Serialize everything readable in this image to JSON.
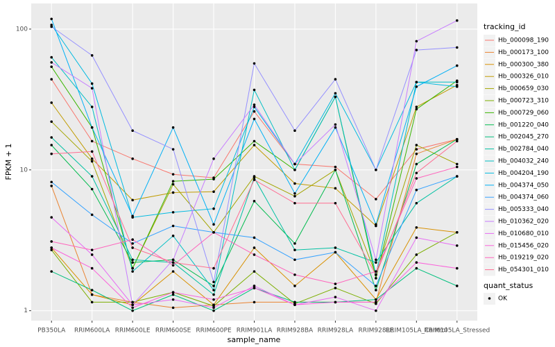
{
  "chart_data": {
    "type": "line",
    "log_y": true,
    "grid": true,
    "x_label": "sample_name",
    "y_label": "FPKM + 1",
    "legend_title": "tracking_id",
    "status_legend_title": "quant_status",
    "status_labels": [
      "OK"
    ],
    "categories": [
      "PB350LA",
      "RRIM600LA",
      "RRIM600LE",
      "RRIM600SE",
      "RRIM600PE",
      "RRIM901LA",
      "RRIM928BA",
      "RRIM928LA",
      "RRIM928LE",
      "RRIM105LA_Control",
      "RRIM105LA_Stressed"
    ],
    "ylim": [
      0.85,
      152
    ],
    "yticks": [
      1,
      10,
      100
    ],
    "series": [
      {
        "name": "Hb_000098_190",
        "color": "#F8766D",
        "values": [
          44,
          16,
          12,
          9.3,
          8.8,
          26,
          11,
          10.5,
          6.2,
          14,
          16.5
        ]
      },
      {
        "name": "Hb_000173_100",
        "color": "#EA8331",
        "values": [
          7.7,
          1.3,
          1.15,
          1.05,
          1.1,
          1.15,
          1.15,
          1.15,
          1.15,
          13,
          16.5
        ]
      },
      {
        "name": "Hb_000300_380",
        "color": "#D89000",
        "values": [
          2.8,
          1.3,
          1.1,
          1.9,
          1.1,
          2.8,
          1.5,
          2.6,
          1.2,
          3.9,
          3.6
        ]
      },
      {
        "name": "Hb_000326_010",
        "color": "#C09B00",
        "values": [
          30,
          12,
          6.1,
          6.9,
          7.0,
          15,
          8.0,
          7.4,
          4.0,
          28,
          40
        ]
      },
      {
        "name": "Hb_000659_030",
        "color": "#A3A500",
        "values": [
          22,
          11.5,
          2.0,
          7.9,
          3.6,
          9,
          6.5,
          10,
          1.8,
          15,
          11
        ]
      },
      {
        "name": "Hb_000723_310",
        "color": "#7CAE00",
        "values": [
          2.7,
          1.15,
          1.15,
          1.35,
          1.08,
          1.9,
          1.12,
          1.45,
          1.12,
          2.5,
          3.6
        ]
      },
      {
        "name": "Hb_000729_060",
        "color": "#39B600",
        "values": [
          54,
          20,
          2.0,
          8.3,
          8.6,
          16,
          10,
          33,
          1.7,
          27,
          43
        ]
      },
      {
        "name": "Hb_001220_040",
        "color": "#00BB4E",
        "values": [
          15,
          7.3,
          2.2,
          2.3,
          1.5,
          6,
          3.0,
          10,
          1.4,
          11,
          16.5
        ]
      },
      {
        "name": "Hb_002045_270",
        "color": "#00BF7D",
        "values": [
          1.9,
          1.4,
          1.0,
          1.3,
          1.0,
          1.45,
          1.15,
          1.15,
          1.2,
          2.0,
          1.5
        ]
      },
      {
        "name": "Hb_002784_040",
        "color": "#00C1A3",
        "values": [
          17,
          9,
          2.3,
          2.2,
          1.3,
          8.8,
          2.7,
          2.8,
          2.2,
          5.8,
          9
        ]
      },
      {
        "name": "Hb_004032_240",
        "color": "#00BFC4",
        "values": [
          63,
          28,
          1.9,
          3.4,
          1.4,
          37,
          10,
          33,
          1.8,
          42,
          42
        ]
      },
      {
        "name": "Hb_004204_190",
        "color": "#00BAE0",
        "values": [
          107,
          41,
          4.6,
          5.0,
          5.3,
          28,
          11,
          35,
          10,
          42,
          39
        ]
      },
      {
        "name": "Hb_004374_050",
        "color": "#00B0F6",
        "values": [
          118,
          20,
          4.7,
          20,
          4.1,
          23,
          6.8,
          20,
          4.1,
          39,
          55
        ]
      },
      {
        "name": "Hb_004374_060",
        "color": "#35A2FF",
        "values": [
          8.2,
          4.8,
          3.0,
          4.0,
          3.6,
          3.3,
          2.3,
          2.6,
          1.5,
          7.2,
          9
        ]
      },
      {
        "name": "Hb_005333_040",
        "color": "#9590FF",
        "values": [
          104,
          65,
          19,
          14,
          1.6,
          57,
          19,
          44,
          10,
          71,
          74
        ]
      },
      {
        "name": "Hb_010362_020",
        "color": "#C77CFF",
        "values": [
          58,
          38,
          1.1,
          2.3,
          12,
          29,
          11,
          21,
          2.3,
          82,
          115
        ]
      },
      {
        "name": "Hb_010680_010",
        "color": "#E76BF3",
        "values": [
          4.6,
          2.5,
          1.1,
          1.2,
          1.05,
          1.5,
          1.1,
          1.25,
          1.0,
          3.3,
          2.9
        ]
      },
      {
        "name": "Hb_015456_020",
        "color": "#FA62DB",
        "values": [
          2.8,
          2.0,
          1.05,
          1.35,
          1.2,
          1.45,
          1.1,
          1.15,
          1.15,
          2.2,
          2.0
        ]
      },
      {
        "name": "Hb_019219_020",
        "color": "#FF62BC",
        "values": [
          3.1,
          2.7,
          3.2,
          2.1,
          3.6,
          2.5,
          1.8,
          1.55,
          1.9,
          8.7,
          10.5
        ]
      },
      {
        "name": "Hb_054301_010",
        "color": "#FF6C91",
        "values": [
          13,
          13.5,
          2.8,
          2.2,
          2.0,
          8.5,
          5.8,
          5.8,
          1.8,
          9.5,
          16
        ]
      }
    ]
  }
}
